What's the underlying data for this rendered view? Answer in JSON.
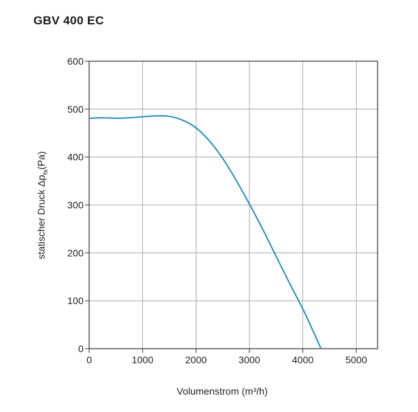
{
  "chart_data": {
    "type": "line",
    "title": "GBV 400 EC",
    "xlabel": "Volumenstrom (m³/h)",
    "ylabel": {
      "prefix": "statischer Druck Δp",
      "subscript": "fa",
      "suffix": "(Pa)"
    },
    "xlim": [
      0,
      5400
    ],
    "ylim": [
      0,
      600
    ],
    "x_ticks": [
      0,
      1000,
      2000,
      3000,
      4000,
      5000
    ],
    "y_ticks": [
      0,
      100,
      200,
      300,
      400,
      500,
      600
    ],
    "grid": true,
    "line_color": "#2a8fc0",
    "series": [
      {
        "x": [
          0,
          250,
          500,
          750,
          1000,
          1250,
          1500,
          1750,
          2000,
          2250,
          2500,
          2750,
          3000,
          3250,
          3500,
          3750,
          4000,
          4200,
          4340
        ],
        "values": [
          481,
          482,
          481,
          482,
          484,
          486,
          485,
          477,
          461,
          434,
          397,
          352,
          302,
          249,
          193,
          137,
          83,
          35,
          0
        ]
      }
    ]
  }
}
